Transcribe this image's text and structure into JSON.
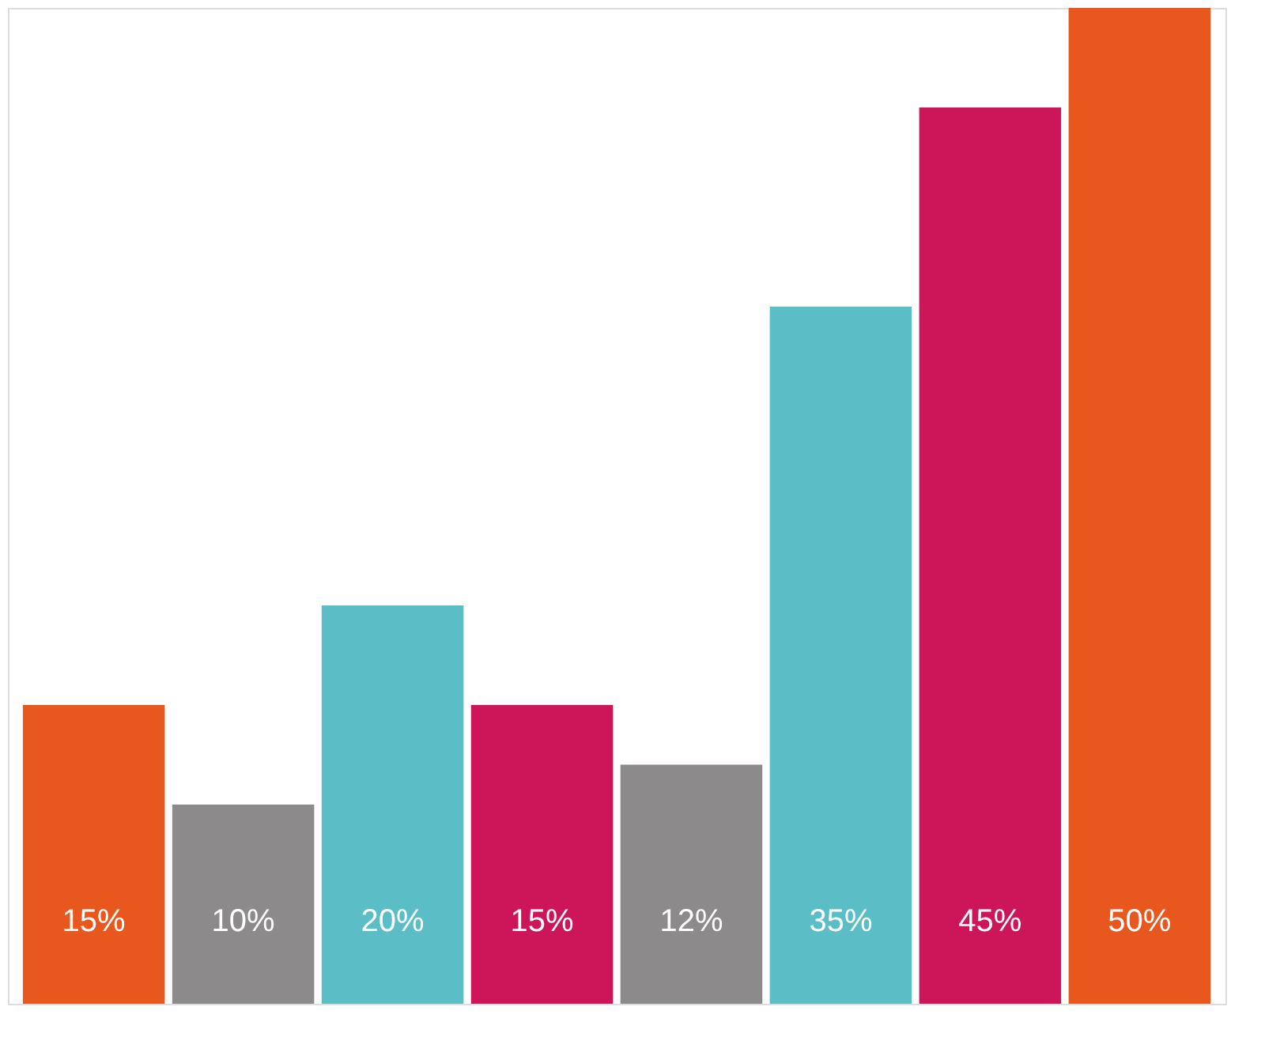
{
  "chart_data": {
    "type": "bar",
    "categories": [
      null,
      null,
      null,
      null,
      null,
      null,
      null,
      null
    ],
    "values": [
      15,
      10,
      20,
      15,
      12,
      35,
      45,
      50
    ],
    "value_labels": [
      "15%",
      "10%",
      "20%",
      "15%",
      "12%",
      "35%",
      "45%",
      "50%"
    ],
    "colors": [
      "#e8581e",
      "#8c8a8b",
      "#5bbdc5",
      "#cc1659",
      "#8c8a8b",
      "#5bbdc5",
      "#cc1659",
      "#e8581e"
    ],
    "tick_labels": false,
    "grid": false
  }
}
